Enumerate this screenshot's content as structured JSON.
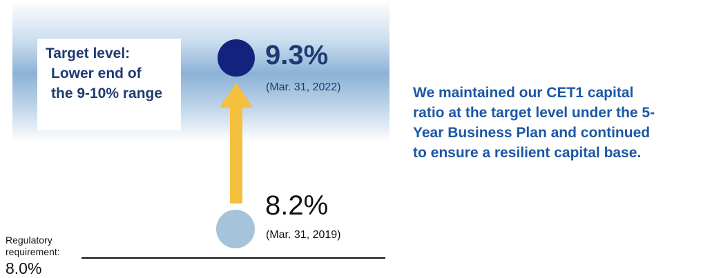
{
  "target": {
    "line1": "Target level:",
    "line2": "Lower end of",
    "line3": "the 9-10% range"
  },
  "points": {
    "current": {
      "value": "9.3%",
      "date": "(Mar. 31, 2022)"
    },
    "baseline": {
      "value": "8.2%",
      "date": "(Mar. 31, 2019)"
    }
  },
  "regulatory": {
    "label_line1": "Regulatory",
    "label_line2": "requirement:",
    "value": "8.0%"
  },
  "statement": {
    "line1": "We maintained our CET1 capital",
    "line2": "ratio at the target level under the 5-",
    "line3": "Year Business Plan and continued",
    "line4": "to ensure a resilient capital base."
  },
  "colors": {
    "navy": "#13237d",
    "light_blue": "#a5c3da",
    "arrow_yellow": "#f4c03d",
    "statement_blue": "#1c57a5"
  }
}
